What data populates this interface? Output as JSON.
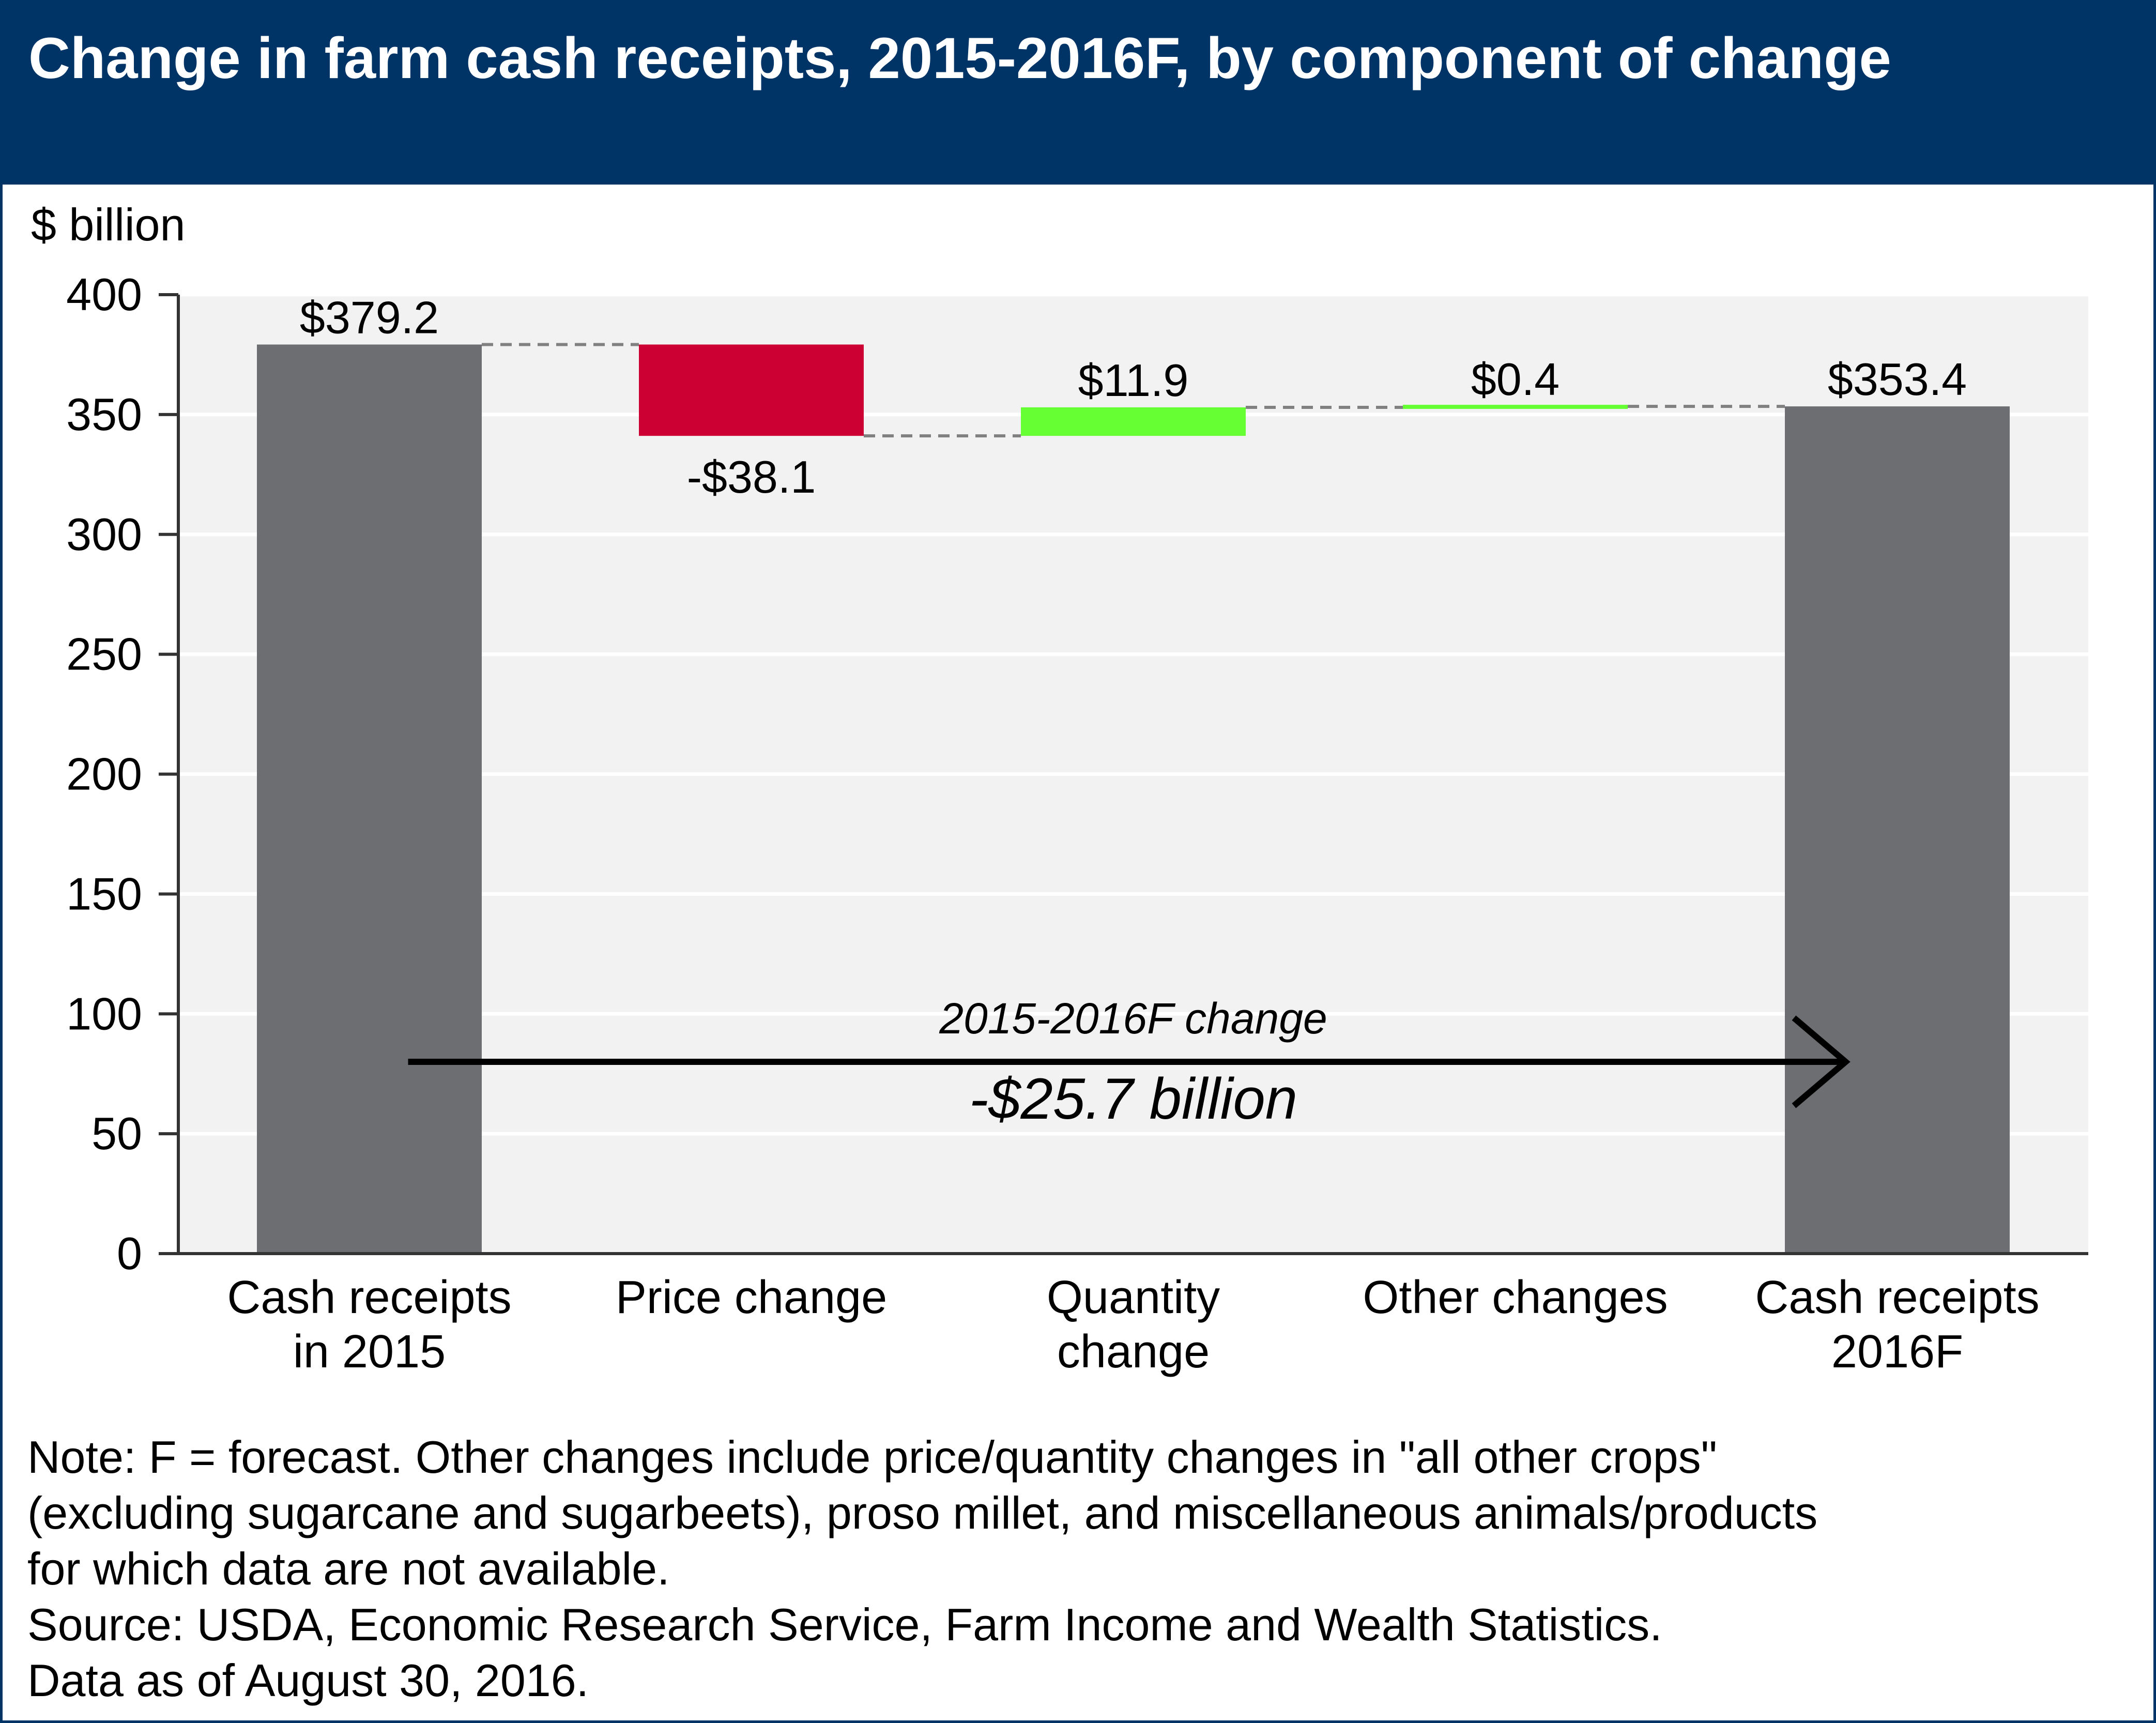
{
  "title": "Change in farm cash receipts, 2015-2016F, by component of change",
  "notes": {
    "lines": [
      "Note: F = forecast. Other changes include price/quantity changes in \"all other crops\"",
      "(excluding sugarcane and sugarbeets), proso millet, and miscellaneous animals/products",
      "for which data are not available.",
      "Source: USDA, Economic Research Service, Farm Income and Wealth Statistics.",
      "Data as of August 30, 2016."
    ]
  },
  "colors": {
    "header": "#003366",
    "total": "#6d6e71",
    "decrease": "#cc0033",
    "increase": "#66ff33",
    "plot_bg": "#f2f2f2",
    "grid": "#ffffff",
    "connector": "#808080"
  },
  "chart_data": {
    "type": "bar",
    "subtype": "waterfall",
    "title": "Change in farm cash receipts, 2015-2016F, by component of change",
    "ylabel": "$ billion",
    "xlabel": "",
    "ylim": [
      0,
      400
    ],
    "yticks": [
      0,
      50,
      100,
      150,
      200,
      250,
      300,
      350,
      400
    ],
    "grid": true,
    "categories": [
      [
        "Cash receipts",
        "in 2015"
      ],
      [
        "Price change"
      ],
      [
        "Quantity",
        "change"
      ],
      [
        "Other changes"
      ],
      [
        "Cash receipts",
        "2016F"
      ]
    ],
    "bars": [
      {
        "kind": "total",
        "start": 0,
        "end": 379.2,
        "label": "$379.2"
      },
      {
        "kind": "decrease",
        "start": 379.2,
        "end": 341.1,
        "label": "-$38.1"
      },
      {
        "kind": "increase",
        "start": 341.1,
        "end": 353.0,
        "label": "$11.9"
      },
      {
        "kind": "increase",
        "start": 353.0,
        "end": 353.4,
        "label": "$0.4"
      },
      {
        "kind": "total",
        "start": 0,
        "end": 353.4,
        "label": "$353.4"
      }
    ],
    "annotation": {
      "top": "2015-2016F change",
      "main": "-$25.7 billion",
      "arrow_y": 80
    }
  }
}
